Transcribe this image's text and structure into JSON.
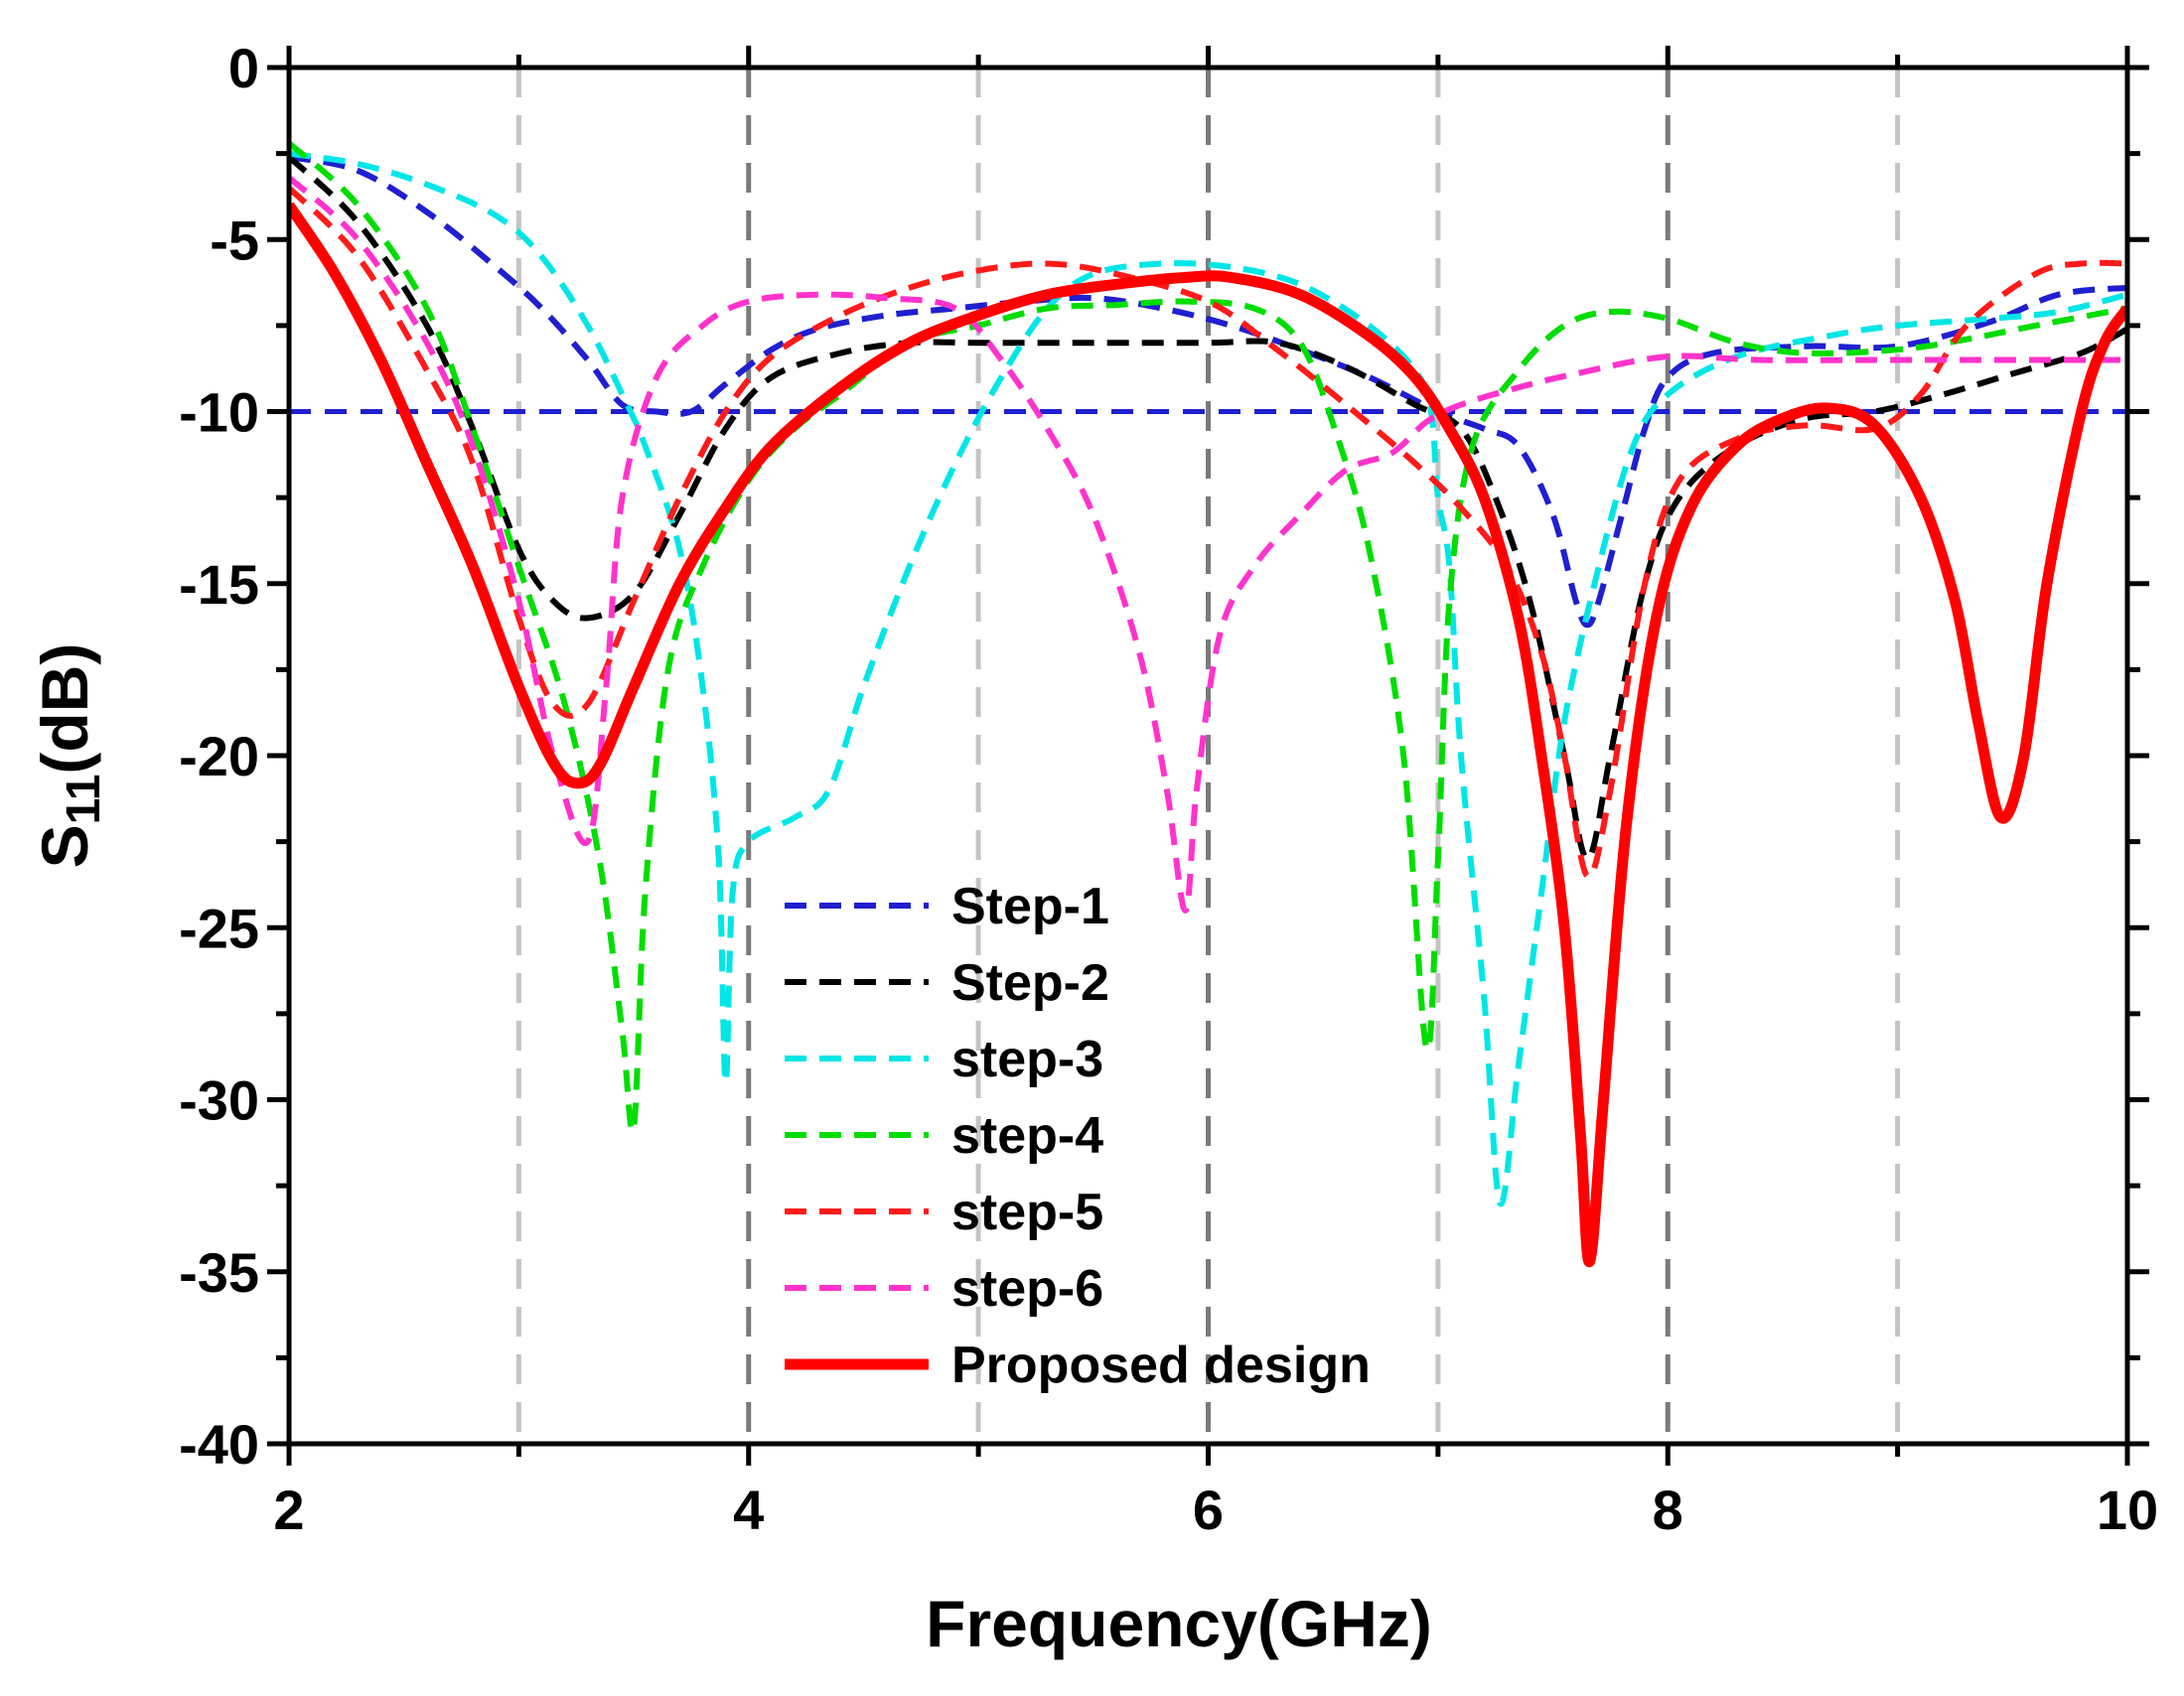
{
  "chart_data": {
    "type": "line",
    "title": "",
    "xlabel": "Frequency(GHz)",
    "ylabel_main": "S",
    "ylabel_sub": "11",
    "ylabel_suffix": "(dB)",
    "xlim": [
      2,
      10
    ],
    "ylim": [
      -40,
      0
    ],
    "xticks": [
      2,
      4,
      6,
      8,
      10
    ],
    "xtick_labels": [
      "2",
      "4",
      "6",
      "8",
      "10"
    ],
    "yticks": [
      0,
      -5,
      -10,
      -15,
      -20,
      -25,
      -30,
      -35,
      -40
    ],
    "ytick_labels": [
      "0",
      "-5",
      "-10",
      "-15",
      "-20",
      "-25",
      "-30",
      "-35",
      "-40"
    ],
    "vgrid_light": [
      3,
      5,
      7,
      9
    ],
    "vgrid_dark": [
      4,
      6,
      8
    ],
    "reference_line": {
      "y": -10,
      "color": "#1f1fd0"
    },
    "legend_position": "bottom-center",
    "series": [
      {
        "name": "Step-1",
        "color": "#1f1fd0",
        "style": "dashed",
        "points": [
          [
            2,
            -2.6
          ],
          [
            2.3,
            -3.0
          ],
          [
            2.6,
            -4.2
          ],
          [
            2.9,
            -5.8
          ],
          [
            3.1,
            -7.0
          ],
          [
            3.3,
            -8.5
          ],
          [
            3.45,
            -9.8
          ],
          [
            3.6,
            -10.0
          ],
          [
            3.75,
            -10.0
          ],
          [
            3.9,
            -9.2
          ],
          [
            4.1,
            -8.2
          ],
          [
            4.3,
            -7.6
          ],
          [
            4.6,
            -7.2
          ],
          [
            4.9,
            -7.0
          ],
          [
            5.2,
            -6.8
          ],
          [
            5.5,
            -6.7
          ],
          [
            5.8,
            -7.0
          ],
          [
            6.1,
            -7.5
          ],
          [
            6.4,
            -8.2
          ],
          [
            6.7,
            -9.0
          ],
          [
            7.0,
            -10.0
          ],
          [
            7.2,
            -10.5
          ],
          [
            7.35,
            -11.0
          ],
          [
            7.5,
            -13.0
          ],
          [
            7.6,
            -15.5
          ],
          [
            7.65,
            -16.2
          ],
          [
            7.7,
            -15.5
          ],
          [
            7.8,
            -13.0
          ],
          [
            7.9,
            -10.5
          ],
          [
            8.0,
            -9.0
          ],
          [
            8.2,
            -8.3
          ],
          [
            8.6,
            -8.1
          ],
          [
            9.0,
            -8.1
          ],
          [
            9.4,
            -7.4
          ],
          [
            9.7,
            -6.6
          ],
          [
            10,
            -6.4
          ]
        ]
      },
      {
        "name": "Step-2",
        "color": "#000000",
        "style": "dashed",
        "points": [
          [
            2,
            -2.6
          ],
          [
            2.3,
            -4.5
          ],
          [
            2.6,
            -7.5
          ],
          [
            2.8,
            -10.5
          ],
          [
            3.0,
            -14.0
          ],
          [
            3.15,
            -15.5
          ],
          [
            3.3,
            -16.0
          ],
          [
            3.5,
            -15.3
          ],
          [
            3.7,
            -13.0
          ],
          [
            3.9,
            -10.5
          ],
          [
            4.1,
            -9.0
          ],
          [
            4.4,
            -8.3
          ],
          [
            4.7,
            -8.0
          ],
          [
            5.0,
            -8.0
          ],
          [
            5.5,
            -8.0
          ],
          [
            6.0,
            -8.0
          ],
          [
            6.3,
            -8.0
          ],
          [
            6.6,
            -8.7
          ],
          [
            6.9,
            -9.8
          ],
          [
            7.1,
            -10.5
          ],
          [
            7.25,
            -12.5
          ],
          [
            7.4,
            -15.5
          ],
          [
            7.55,
            -20.0
          ],
          [
            7.65,
            -23.0
          ],
          [
            7.75,
            -20.0
          ],
          [
            7.9,
            -15.0
          ],
          [
            8.05,
            -12.5
          ],
          [
            8.3,
            -11.0
          ],
          [
            8.6,
            -10.2
          ],
          [
            8.9,
            -10.0
          ],
          [
            9.2,
            -9.5
          ],
          [
            9.5,
            -8.9
          ],
          [
            9.8,
            -8.3
          ],
          [
            10,
            -7.6
          ]
        ]
      },
      {
        "name": "step-3",
        "color": "#00e6e6",
        "style": "dashed",
        "points": [
          [
            2,
            -2.5
          ],
          [
            2.3,
            -2.8
          ],
          [
            2.6,
            -3.4
          ],
          [
            2.9,
            -4.3
          ],
          [
            3.1,
            -5.5
          ],
          [
            3.3,
            -7.5
          ],
          [
            3.45,
            -9.5
          ],
          [
            3.55,
            -11.0
          ],
          [
            3.7,
            -14.0
          ],
          [
            3.8,
            -18.0
          ],
          [
            3.87,
            -23.0
          ],
          [
            3.9,
            -29.5
          ],
          [
            3.93,
            -24.0
          ],
          [
            4.0,
            -22.5
          ],
          [
            4.2,
            -21.8
          ],
          [
            4.35,
            -21.0
          ],
          [
            4.5,
            -18.0
          ],
          [
            4.7,
            -14.5
          ],
          [
            4.9,
            -11.5
          ],
          [
            5.1,
            -9.0
          ],
          [
            5.3,
            -7.0
          ],
          [
            5.5,
            -6.0
          ],
          [
            5.8,
            -5.7
          ],
          [
            6.1,
            -5.8
          ],
          [
            6.4,
            -6.3
          ],
          [
            6.7,
            -7.5
          ],
          [
            6.9,
            -8.8
          ],
          [
            6.97,
            -10.0
          ],
          [
            7.0,
            -12.5
          ],
          [
            7.05,
            -14.5
          ],
          [
            7.1,
            -20.0
          ],
          [
            7.2,
            -27.0
          ],
          [
            7.27,
            -33.0
          ],
          [
            7.35,
            -29.0
          ],
          [
            7.45,
            -24.0
          ],
          [
            7.55,
            -19.0
          ],
          [
            7.7,
            -14.5
          ],
          [
            7.85,
            -11.0
          ],
          [
            8.0,
            -9.5
          ],
          [
            8.3,
            -8.4
          ],
          [
            8.7,
            -7.8
          ],
          [
            9.0,
            -7.5
          ],
          [
            9.4,
            -7.3
          ],
          [
            9.7,
            -7.1
          ],
          [
            10,
            -6.6
          ]
        ]
      },
      {
        "name": "step-4",
        "color": "#00dd00",
        "style": "dashed",
        "points": [
          [
            2,
            -2.2
          ],
          [
            2.3,
            -4.0
          ],
          [
            2.6,
            -7.0
          ],
          [
            2.8,
            -10.5
          ],
          [
            3.0,
            -14.5
          ],
          [
            3.2,
            -18.5
          ],
          [
            3.35,
            -23.0
          ],
          [
            3.45,
            -28.0
          ],
          [
            3.5,
            -30.8
          ],
          [
            3.55,
            -24.0
          ],
          [
            3.65,
            -17.5
          ],
          [
            3.8,
            -14.5
          ],
          [
            4.0,
            -12.0
          ],
          [
            4.2,
            -10.5
          ],
          [
            4.4,
            -9.5
          ],
          [
            4.7,
            -8.0
          ],
          [
            5.0,
            -7.5
          ],
          [
            5.3,
            -7.0
          ],
          [
            5.6,
            -6.9
          ],
          [
            5.9,
            -6.8
          ],
          [
            6.2,
            -7.0
          ],
          [
            6.4,
            -8.0
          ],
          [
            6.55,
            -10.5
          ],
          [
            6.7,
            -14.0
          ],
          [
            6.85,
            -20.0
          ],
          [
            6.95,
            -28.5
          ],
          [
            7.0,
            -23.0
          ],
          [
            7.05,
            -15.5
          ],
          [
            7.15,
            -11.0
          ],
          [
            7.35,
            -8.8
          ],
          [
            7.55,
            -7.5
          ],
          [
            7.75,
            -7.1
          ],
          [
            8.0,
            -7.3
          ],
          [
            8.3,
            -8.0
          ],
          [
            8.6,
            -8.3
          ],
          [
            9.0,
            -8.2
          ],
          [
            9.3,
            -7.9
          ],
          [
            9.6,
            -7.5
          ],
          [
            10,
            -7.0
          ]
        ]
      },
      {
        "name": "step-5",
        "color": "#ff1a1a",
        "style": "dashed",
        "points": [
          [
            2,
            -3.5
          ],
          [
            2.3,
            -5.5
          ],
          [
            2.6,
            -8.8
          ],
          [
            2.8,
            -11.5
          ],
          [
            3.0,
            -16.0
          ],
          [
            3.15,
            -18.5
          ],
          [
            3.3,
            -18.5
          ],
          [
            3.5,
            -15.5
          ],
          [
            3.7,
            -12.5
          ],
          [
            3.9,
            -10.0
          ],
          [
            4.1,
            -8.4
          ],
          [
            4.4,
            -7.2
          ],
          [
            4.7,
            -6.4
          ],
          [
            5.0,
            -5.9
          ],
          [
            5.3,
            -5.7
          ],
          [
            5.6,
            -6.0
          ],
          [
            6.0,
            -6.8
          ],
          [
            6.3,
            -8.2
          ],
          [
            6.6,
            -9.8
          ],
          [
            6.9,
            -11.5
          ],
          [
            7.1,
            -12.8
          ],
          [
            7.3,
            -14.5
          ],
          [
            7.45,
            -17.0
          ],
          [
            7.55,
            -20.0
          ],
          [
            7.65,
            -23.5
          ],
          [
            7.75,
            -21.0
          ],
          [
            7.9,
            -15.0
          ],
          [
            8.05,
            -12.0
          ],
          [
            8.3,
            -10.8
          ],
          [
            8.6,
            -10.4
          ],
          [
            8.9,
            -10.5
          ],
          [
            9.1,
            -9.5
          ],
          [
            9.3,
            -7.5
          ],
          [
            9.6,
            -6.0
          ],
          [
            9.8,
            -5.7
          ],
          [
            10,
            -5.7
          ]
        ]
      },
      {
        "name": "step-6",
        "color": "#ff33cc",
        "style": "dashed",
        "points": [
          [
            2,
            -3.2
          ],
          [
            2.3,
            -5.0
          ],
          [
            2.6,
            -8.0
          ],
          [
            2.8,
            -11.0
          ],
          [
            3.0,
            -15.5
          ],
          [
            3.15,
            -20.0
          ],
          [
            3.3,
            -22.5
          ],
          [
            3.38,
            -18.0
          ],
          [
            3.45,
            -12.5
          ],
          [
            3.6,
            -9.0
          ],
          [
            3.8,
            -7.5
          ],
          [
            4.0,
            -6.8
          ],
          [
            4.3,
            -6.6
          ],
          [
            4.6,
            -6.7
          ],
          [
            4.9,
            -7.0
          ],
          [
            5.1,
            -8.5
          ],
          [
            5.3,
            -10.5
          ],
          [
            5.5,
            -13.0
          ],
          [
            5.7,
            -17.0
          ],
          [
            5.82,
            -21.0
          ],
          [
            5.9,
            -24.5
          ],
          [
            5.95,
            -21.0
          ],
          [
            6.05,
            -16.5
          ],
          [
            6.2,
            -14.5
          ],
          [
            6.4,
            -13.0
          ],
          [
            6.6,
            -11.7
          ],
          [
            6.8,
            -11.2
          ],
          [
            6.95,
            -10.3
          ],
          [
            7.1,
            -9.8
          ],
          [
            7.35,
            -9.3
          ],
          [
            7.6,
            -8.9
          ],
          [
            8.0,
            -8.4
          ],
          [
            8.4,
            -8.5
          ],
          [
            9.0,
            -8.5
          ],
          [
            9.5,
            -8.5
          ],
          [
            10,
            -8.5
          ]
        ]
      },
      {
        "name": "Proposed design",
        "color": "#ff0000",
        "style": "solid",
        "points": [
          [
            2,
            -4.0
          ],
          [
            2.2,
            -6.0
          ],
          [
            2.4,
            -8.5
          ],
          [
            2.6,
            -11.5
          ],
          [
            2.8,
            -14.5
          ],
          [
            3.0,
            -18.0
          ],
          [
            3.15,
            -20.2
          ],
          [
            3.25,
            -20.8
          ],
          [
            3.35,
            -20.3
          ],
          [
            3.5,
            -18.0
          ],
          [
            3.7,
            -15.0
          ],
          [
            3.9,
            -12.8
          ],
          [
            4.1,
            -11.0
          ],
          [
            4.4,
            -9.3
          ],
          [
            4.7,
            -8.0
          ],
          [
            5.0,
            -7.2
          ],
          [
            5.3,
            -6.6
          ],
          [
            5.6,
            -6.3
          ],
          [
            5.9,
            -6.1
          ],
          [
            6.1,
            -6.1
          ],
          [
            6.4,
            -6.6
          ],
          [
            6.7,
            -7.8
          ],
          [
            6.9,
            -9.0
          ],
          [
            7.05,
            -10.5
          ],
          [
            7.2,
            -12.5
          ],
          [
            7.35,
            -16.0
          ],
          [
            7.45,
            -20.0
          ],
          [
            7.55,
            -25.0
          ],
          [
            7.62,
            -31.0
          ],
          [
            7.66,
            -34.7
          ],
          [
            7.72,
            -30.0
          ],
          [
            7.82,
            -22.0
          ],
          [
            7.95,
            -16.0
          ],
          [
            8.1,
            -12.8
          ],
          [
            8.3,
            -11.0
          ],
          [
            8.5,
            -10.2
          ],
          [
            8.7,
            -9.9
          ],
          [
            8.9,
            -10.4
          ],
          [
            9.1,
            -12.5
          ],
          [
            9.25,
            -15.5
          ],
          [
            9.35,
            -19.0
          ],
          [
            9.45,
            -21.8
          ],
          [
            9.55,
            -20.0
          ],
          [
            9.65,
            -15.0
          ],
          [
            9.8,
            -10.0
          ],
          [
            9.9,
            -8.0
          ],
          [
            10,
            -7.0
          ]
        ]
      }
    ]
  }
}
